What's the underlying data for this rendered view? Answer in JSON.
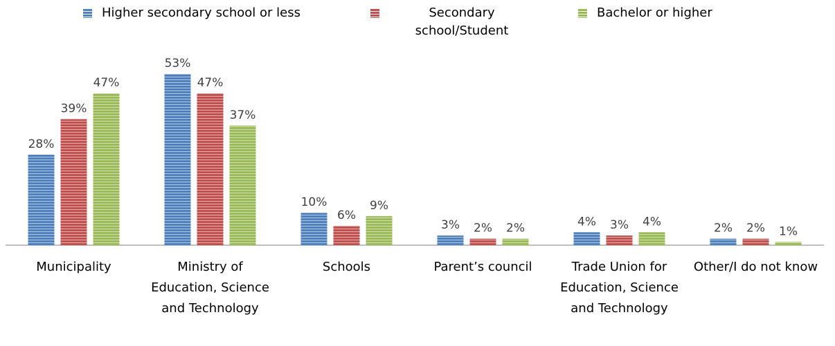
{
  "chart_data": {
    "type": "bar",
    "categories": [
      "Municipality",
      "Ministry of Education, Science and Technology",
      "Schools",
      "Parent’s council",
      "Trade Union for Education, Science and Technology",
      "Other/I do not know"
    ],
    "series": [
      {
        "name": "Higher secondary school or less",
        "color": "#4f81bd",
        "values": [
          28,
          53,
          10,
          3,
          4,
          2
        ],
        "value_labels": [
          "28%",
          "53%",
          "10%",
          "3%",
          "4%",
          "2%"
        ]
      },
      {
        "name": "Secondary school/Student",
        "color": "#c0504d",
        "values": [
          39,
          47,
          6,
          2,
          3,
          2
        ],
        "value_labels": [
          "39%",
          "47%",
          "6%",
          "2%",
          "3%",
          "2%"
        ]
      },
      {
        "name": "Bachelor or higher",
        "color": "#9bbb59",
        "values": [
          47,
          37,
          9,
          2,
          4,
          1
        ],
        "value_labels": [
          "47%",
          "37%",
          "9%",
          "2%",
          "4%",
          "1%"
        ]
      }
    ],
    "legend": "top"
  }
}
